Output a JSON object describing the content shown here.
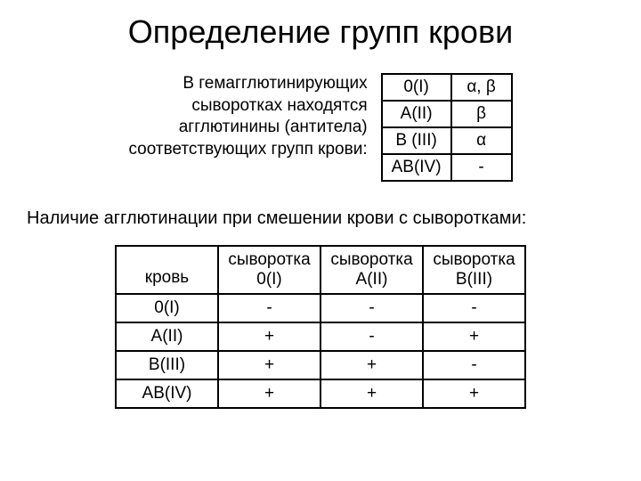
{
  "title": "Определение групп крови",
  "intro": {
    "line1": "В гемагглютинирующих",
    "line2": "сыворотках находятся",
    "line3": "агглютинины (антитела)",
    "line4": "соответствующих групп крови:"
  },
  "agglutinins": {
    "rows": [
      {
        "group": "0(I)",
        "value": "α, β"
      },
      {
        "group": "A(II)",
        "value": "β"
      },
      {
        "group": "B (III)",
        "value": "α"
      },
      {
        "group": "AB(IV)",
        "value": "-"
      }
    ]
  },
  "subtitle": "Наличие агглютинации при смешении крови с сыворотками:",
  "mix": {
    "headers": {
      "col0": "кровь",
      "col1_top": "сыворотка",
      "col1_bot": "0(I)",
      "col2_top": "сыворотка",
      "col2_bot": "A(II)",
      "col3_top": "сыворотка",
      "col3_bot": "B(III)"
    },
    "rows": [
      {
        "blood": "0(I)",
        "s1": "-",
        "s2": "-",
        "s3": "-"
      },
      {
        "blood": "A(II)",
        "s1": "+",
        "s2": "-",
        "s3": "+"
      },
      {
        "blood": "B(III)",
        "s1": "+",
        "s2": "+",
        "s3": "-"
      },
      {
        "blood": "AB(IV)",
        "s1": "+",
        "s2": "+",
        "s3": "+"
      }
    ]
  },
  "style": {
    "bg": "#ffffff",
    "fg": "#000000",
    "border": "#000000",
    "title_fontsize": 36,
    "body_fontsize": 19,
    "subtitle_fontsize": 20,
    "table1_col_min": 68,
    "table2_col_min": 115
  }
}
